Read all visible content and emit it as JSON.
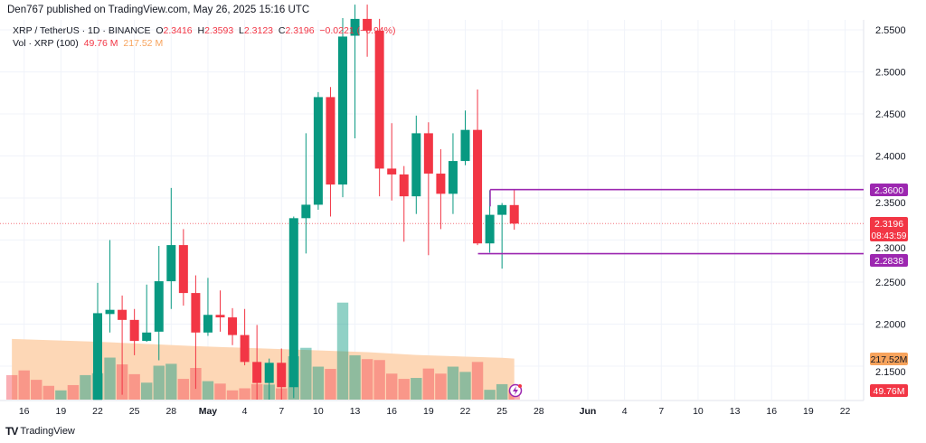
{
  "header": {
    "published": "Den767 published on TradingView.com, May 26, 2025 15:16 UTC"
  },
  "legend": {
    "symbol": "XRP / TetherUS · 1D · BINANCE",
    "o_label": "O",
    "o": "2.3416",
    "h_label": "H",
    "h": "2.3593",
    "l_label": "L",
    "l": "2.3123",
    "c_label": "C",
    "c": "2.3196",
    "change": "−0.0221 (−0.94%)",
    "vol_label": "Vol · XRP (100)",
    "vol": "49.76 M",
    "vol_ma": "217.52 M"
  },
  "brand": "TradingView",
  "colors": {
    "up": "#089981",
    "down": "#f23645",
    "level": "#9c27b0",
    "ma": "#f7a35c"
  },
  "chart_data": {
    "type": "candlestick",
    "symbol": "XRPUSDT",
    "interval": "1D",
    "ylim": [
      2.1,
      2.57
    ],
    "y_ticks": [
      "2.5500",
      "2.5000",
      "2.4500",
      "2.4000",
      "2.3500",
      "2.3000",
      "2.2500",
      "2.2000",
      "2.1500"
    ],
    "y_tick_values": [
      2.55,
      2.5,
      2.45,
      2.4,
      2.35,
      2.3,
      2.25,
      2.2,
      2.15
    ],
    "x_ticks": [
      {
        "label": "16",
        "day": -6
      },
      {
        "label": "19",
        "day": -3
      },
      {
        "label": "22",
        "day": 0
      },
      {
        "label": "25",
        "day": 3
      },
      {
        "label": "28",
        "day": 6
      },
      {
        "label": "May",
        "day": 9
      },
      {
        "label": "4",
        "day": 12
      },
      {
        "label": "7",
        "day": 15
      },
      {
        "label": "10",
        "day": 18
      },
      {
        "label": "13",
        "day": 21
      },
      {
        "label": "16",
        "day": 24
      },
      {
        "label": "19",
        "day": 27
      },
      {
        "label": "22",
        "day": 30
      },
      {
        "label": "25",
        "day": 33
      },
      {
        "label": "28",
        "day": 36
      },
      {
        "label": "Jun",
        "day": 40
      },
      {
        "label": "4",
        "day": 43
      },
      {
        "label": "7",
        "day": 46
      },
      {
        "label": "10",
        "day": 49
      },
      {
        "label": "13",
        "day": 52
      },
      {
        "label": "16",
        "day": 55
      },
      {
        "label": "19",
        "day": 58
      },
      {
        "label": "22",
        "day": 61
      }
    ],
    "candles_start": "Apr 22",
    "candles": [
      [
        2.11,
        2.249,
        2.105,
        2.213
      ],
      [
        2.212,
        2.3,
        2.19,
        2.217
      ],
      [
        2.217,
        2.234,
        2.116,
        2.205
      ],
      [
        2.205,
        2.218,
        2.163,
        2.18
      ],
      [
        2.18,
        2.247,
        2.179,
        2.19
      ],
      [
        2.191,
        2.293,
        2.157,
        2.251
      ],
      [
        2.251,
        2.362,
        2.218,
        2.294
      ],
      [
        2.294,
        2.313,
        2.222,
        2.237
      ],
      [
        2.237,
        2.258,
        2.123,
        2.19
      ],
      [
        2.19,
        2.255,
        2.186,
        2.211
      ],
      [
        2.211,
        2.24,
        2.191,
        2.208
      ],
      [
        2.208,
        2.219,
        2.175,
        2.187
      ],
      [
        2.187,
        2.218,
        2.151,
        2.155
      ],
      [
        2.155,
        2.199,
        2.105,
        2.13
      ],
      [
        2.13,
        2.159,
        2.105,
        2.154
      ],
      [
        2.154,
        2.171,
        2.105,
        2.125
      ],
      [
        2.125,
        2.328,
        2.112,
        2.326
      ],
      [
        2.326,
        2.427,
        2.284,
        2.342
      ],
      [
        2.342,
        2.476,
        2.336,
        2.47
      ],
      [
        2.47,
        2.482,
        2.328,
        2.366
      ],
      [
        2.366,
        2.564,
        2.351,
        2.542
      ],
      [
        2.543,
        2.58,
        2.421,
        2.563
      ],
      [
        2.563,
        2.58,
        2.518,
        2.549
      ],
      [
        2.549,
        2.563,
        2.352,
        2.385
      ],
      [
        2.385,
        2.439,
        2.347,
        2.378
      ],
      [
        2.378,
        2.388,
        2.298,
        2.352
      ],
      [
        2.352,
        2.448,
        2.331,
        2.427
      ],
      [
        2.427,
        2.44,
        2.282,
        2.379
      ],
      [
        2.379,
        2.408,
        2.313,
        2.355
      ],
      [
        2.355,
        2.427,
        2.331,
        2.394
      ],
      [
        2.394,
        2.454,
        2.389,
        2.431
      ],
      [
        2.431,
        2.479,
        2.294,
        2.296
      ],
      [
        2.296,
        2.359,
        2.285,
        2.33
      ],
      [
        2.33,
        2.344,
        2.266,
        2.3416
      ],
      [
        2.3416,
        2.3593,
        2.3123,
        2.3196
      ]
    ],
    "volume_start": "Apr 15",
    "volume_m": [
      130,
      155,
      105,
      73,
      49,
      77,
      130,
      140,
      223,
      187,
      135,
      90,
      180,
      190,
      110,
      168,
      98,
      85,
      49,
      60,
      82,
      80,
      60,
      230,
      275,
      175,
      163,
      515,
      235,
      215,
      210,
      138,
      110,
      115,
      165,
      138,
      175,
      147,
      200,
      52,
      82,
      49.76
    ],
    "volume_up": [
      0,
      0,
      0,
      0,
      1,
      0,
      1
    ],
    "volume_ma_m": [
      [
        -7,
        322
      ],
      [
        0,
        307
      ],
      [
        8,
        284
      ],
      [
        22,
        252
      ],
      [
        26,
        237
      ],
      [
        33,
        222
      ],
      [
        34,
        217.52
      ]
    ],
    "levels": [
      {
        "label": "2.3600",
        "price": 2.36,
        "from_day": 32
      },
      {
        "label": "2.2838",
        "price": 2.2838,
        "from_day": 31
      }
    ],
    "last_price": {
      "label": "2.3196",
      "price": 2.3196,
      "countdown": "08:43:59"
    },
    "vol_labels": {
      "ma": "217.52M",
      "vol": "49.76M",
      "ma_value": 217.52,
      "vol_value": 49.76
    }
  }
}
